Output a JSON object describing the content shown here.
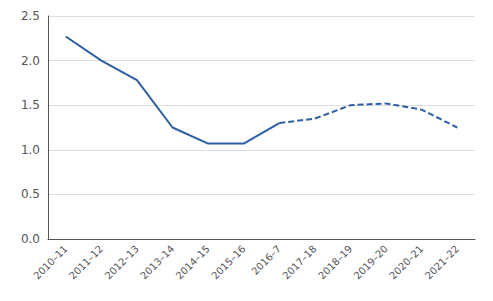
{
  "chart_data": {
    "type": "line",
    "categories": [
      "2010–11",
      "2011–12",
      "2012–13",
      "2013–14",
      "2014–15",
      "2015–16",
      "2016–7",
      "2017–18",
      "2018–19",
      "2019–20",
      "2020–21",
      "2021–22"
    ],
    "series": [
      {
        "color": "#2e5fa3",
        "line_style": "solid",
        "values": [
          2.27,
          2.0,
          1.78,
          1.25,
          1.07,
          1.07,
          1.3,
          null,
          null,
          null,
          null,
          null
        ]
      },
      {
        "color": "#2e5fa3",
        "line_style": "dashed",
        "values": [
          null,
          null,
          null,
          null,
          null,
          null,
          1.3,
          1.35,
          1.5,
          1.52,
          1.45,
          1.25
        ]
      }
    ],
    "ylim": [
      0.0,
      2.5
    ],
    "yticks": [
      {
        "value": 0.0,
        "label": "0.0"
      },
      0.5,
      {
        "value": 1.0,
        "label": "1.0"
      },
      1.5,
      {
        "value": 2.0,
        "label": "2.0"
      },
      2.5
    ],
    "grid": true
  }
}
